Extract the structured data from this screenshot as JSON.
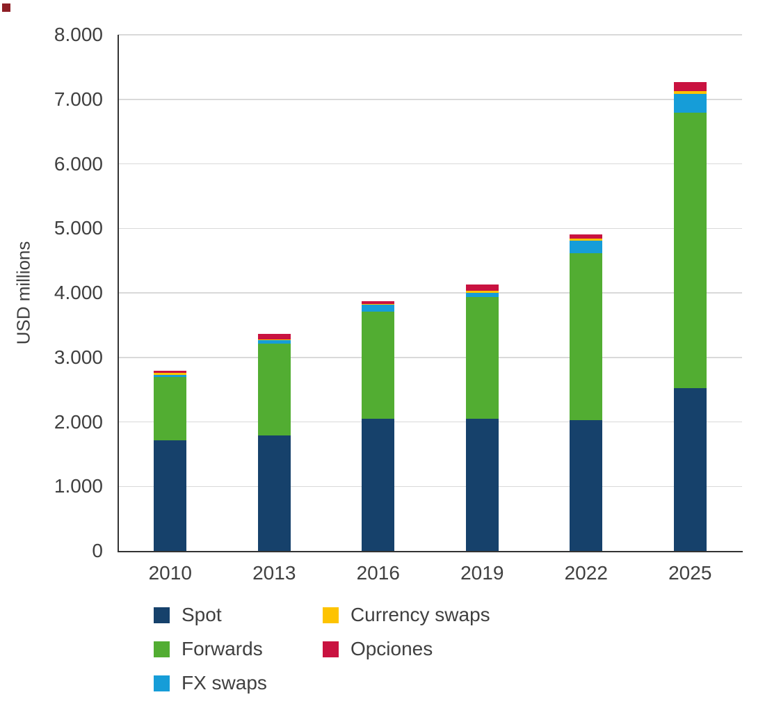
{
  "page": {
    "background": "#ffffff"
  },
  "artifacts": {
    "corner_square_color": "#8e1f26"
  },
  "chart_data": {
    "type": "bar",
    "stacked": true,
    "title": "",
    "xlabel": "",
    "ylabel": "USD millions",
    "categories": [
      "2010",
      "2013",
      "2016",
      "2019",
      "2022",
      "2025"
    ],
    "series": [
      {
        "name": "Spot",
        "color": "#16416b",
        "values": [
          1715,
          1785,
          2050,
          2050,
          2030,
          2525
        ]
      },
      {
        "name": "Forwards",
        "color": "#52ad32",
        "values": [
          985,
          1430,
          1655,
          1885,
          2585,
          4270
        ]
      },
      {
        "name": "FX swaps",
        "color": "#169dd8",
        "values": [
          30,
          55,
          115,
          65,
          195,
          285
        ]
      },
      {
        "name": "Currency swaps",
        "color": "#fdc300",
        "values": [
          30,
          10,
          10,
          30,
          30,
          45
        ]
      },
      {
        "name": "Opciones",
        "color": "#c91240",
        "values": [
          35,
          80,
          45,
          100,
          70,
          145
        ]
      }
    ],
    "totals": [
      2795,
      3360,
      3875,
      4130,
      4910,
      7270
    ],
    "ylim": [
      0,
      8000
    ],
    "yticks": [
      {
        "value": 0,
        "label": "0"
      },
      {
        "value": 1000,
        "label": "1.000"
      },
      {
        "value": 2000,
        "label": "2.000"
      },
      {
        "value": 3000,
        "label": "3.000"
      },
      {
        "value": 4000,
        "label": "4.000"
      },
      {
        "value": 5000,
        "label": "5.000"
      },
      {
        "value": 6000,
        "label": "6.000"
      },
      {
        "value": 7000,
        "label": "7.000"
      },
      {
        "value": 8000,
        "label": "8.000"
      }
    ],
    "grid": true,
    "legend_position": "bottom-left",
    "legend_columns": [
      3,
      2
    ],
    "axis_color": "#333333",
    "grid_color": "#d9d9d9",
    "text_color": "#404040"
  }
}
